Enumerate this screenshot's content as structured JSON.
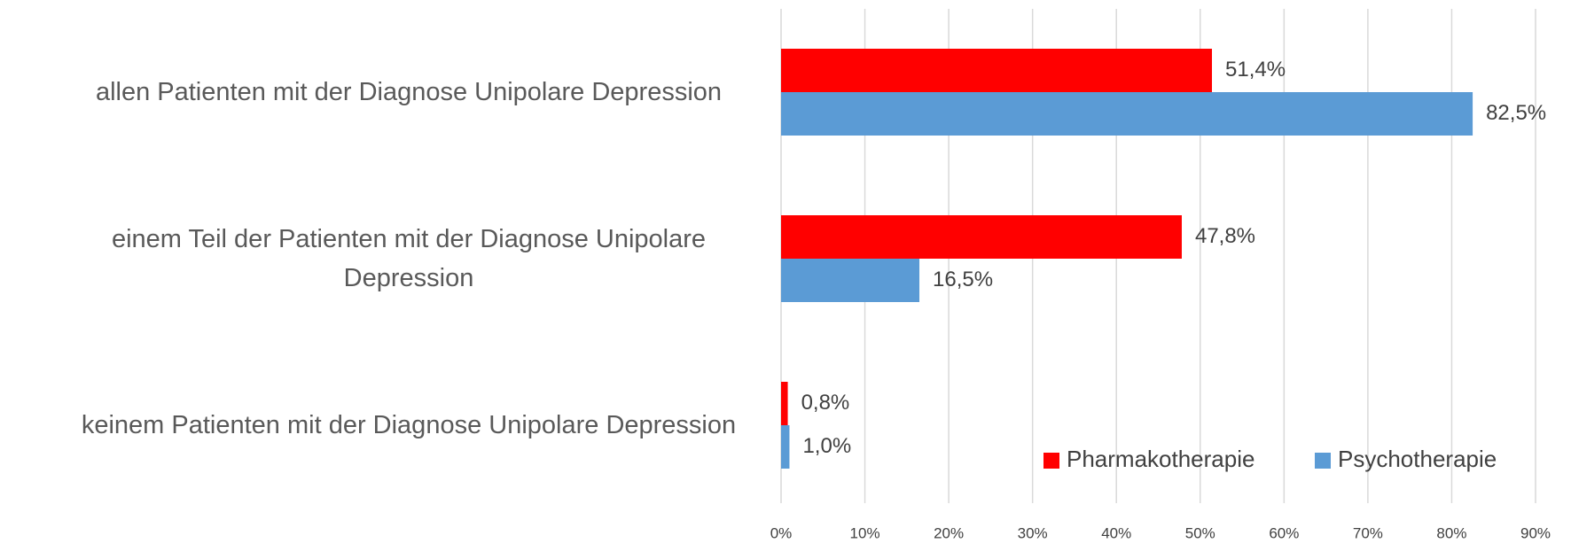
{
  "chart_data": {
    "type": "hbar",
    "categories": [
      "allen Patienten mit der Diagnose Unipolare Depression",
      "einem Teil der Patienten mit der Diagnose Unipolare Depression",
      "keinem Patienten mit der Diagnose Unipolare Depression"
    ],
    "series": [
      {
        "name": "Pharmakotherapie",
        "color": "#ff0000",
        "values": [
          51.4,
          47.8,
          0.8
        ],
        "value_labels": [
          "51,4%",
          "47,8%",
          "0,8%"
        ]
      },
      {
        "name": "Psychotherapie",
        "color": "#5b9bd5",
        "values": [
          82.5,
          16.5,
          1.0
        ],
        "value_labels": [
          "82,5%",
          "16,5%",
          "1,0%"
        ]
      }
    ],
    "xlim": [
      0,
      90
    ],
    "xticks": [
      {
        "value": 0,
        "label": "0%"
      },
      {
        "value": 10,
        "label": "10%"
      },
      {
        "value": 20,
        "label": "20%"
      },
      {
        "value": 30,
        "label": "30%"
      },
      {
        "value": 40,
        "label": "40%"
      },
      {
        "value": 50,
        "label": "50%"
      },
      {
        "value": 60,
        "label": "60%"
      },
      {
        "value": 70,
        "label": "70%"
      },
      {
        "value": 80,
        "label": "80%"
      },
      {
        "value": 90,
        "label": "90%"
      }
    ],
    "grid": true,
    "legend": "lower right"
  }
}
